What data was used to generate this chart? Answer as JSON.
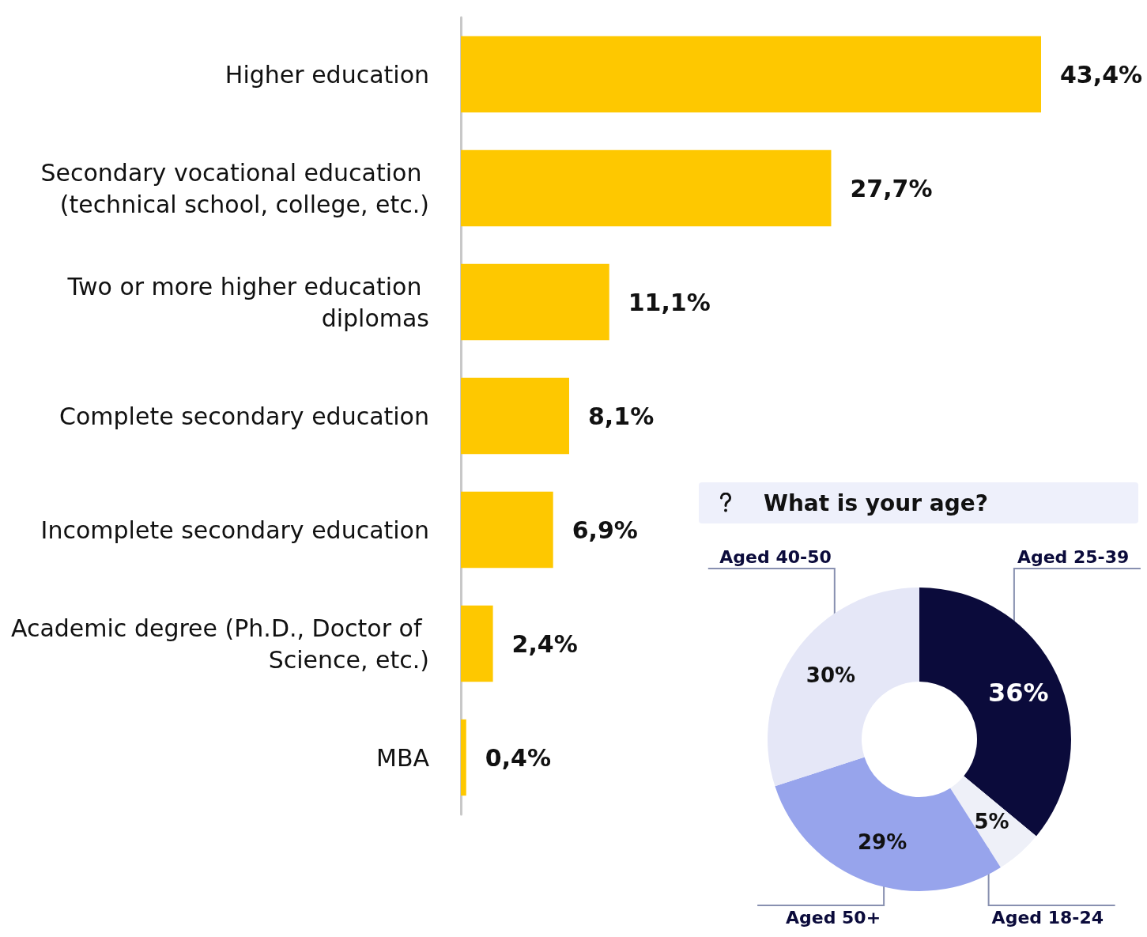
{
  "chart_data": [
    {
      "type": "bar",
      "orientation": "horizontal",
      "categories": [
        "Higher education",
        "Secondary vocational education (technical school, college, etc.)",
        "Two or more higher education diplomas",
        "Complete secondary education",
        "Incomplete secondary education",
        "Academic degree (Ph.D., Doctor of Science, etc.)",
        "MBA"
      ],
      "values": [
        43.4,
        27.7,
        11.1,
        8.1,
        6.9,
        2.4,
        0.4
      ],
      "value_labels": [
        "43,4%",
        "27,7%",
        "11,1%",
        "8,1%",
        "6,9%",
        "2,4%",
        "0,4%"
      ],
      "color": "#fec800",
      "legend": false
    },
    {
      "type": "donut",
      "title": "What is your age?",
      "categories": [
        "Aged 25-39",
        "Aged 18-24",
        "Aged 50+",
        "Aged 40-50"
      ],
      "values": [
        36,
        5,
        29,
        30
      ],
      "value_labels": [
        "36%",
        "5%",
        "29%",
        "30%"
      ],
      "colors": [
        "#0b0b3b",
        "#eef0f8",
        "#97a4ec",
        "#e5e7f7"
      ],
      "legend": false
    }
  ]
}
